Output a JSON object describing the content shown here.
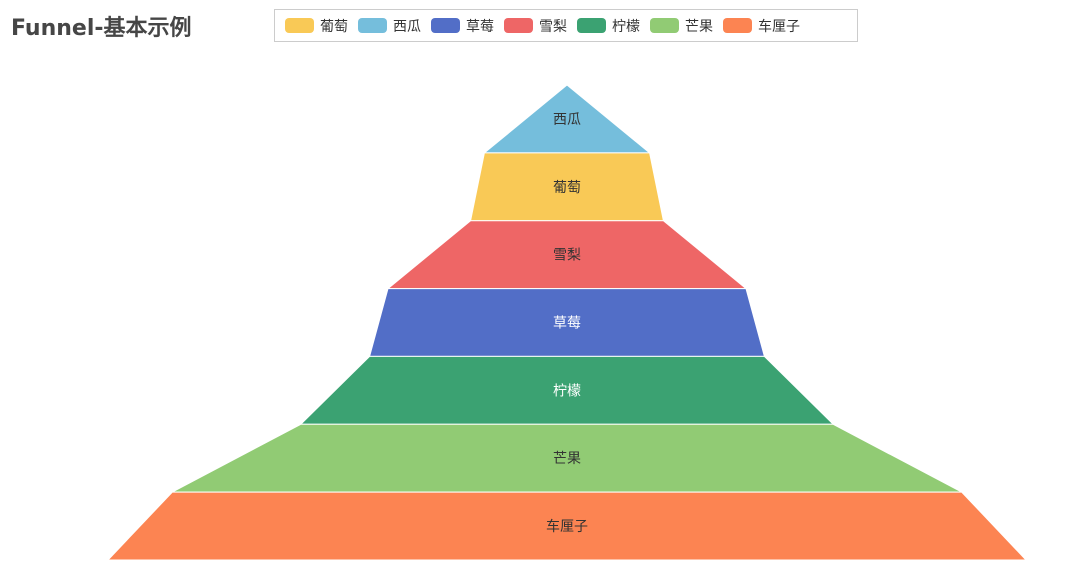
{
  "title": "Funnel-基本示例",
  "chart_data": {
    "type": "funnel",
    "title": "Funnel-基本示例",
    "legend_position": "top",
    "legend": [
      {
        "name": "葡萄",
        "color": "#f9c956"
      },
      {
        "name": "西瓜",
        "color": "#75bedc"
      },
      {
        "name": "草莓",
        "color": "#526ec7"
      },
      {
        "name": "雪梨",
        "color": "#ee6666"
      },
      {
        "name": "柠檬",
        "color": "#3ba272"
      },
      {
        "name": "芒果",
        "color": "#91cb74"
      },
      {
        "name": "车厘子",
        "color": "#fc8452"
      }
    ],
    "segments": [
      {
        "name": "西瓜",
        "relative_width": 0.18,
        "color": "#75bedc",
        "label_color": "#333333"
      },
      {
        "name": "葡萄",
        "relative_width": 0.21,
        "color": "#f9c956",
        "label_color": "#333333"
      },
      {
        "name": "雪梨",
        "relative_width": 0.39,
        "color": "#ee6666",
        "label_color": "#333333"
      },
      {
        "name": "草莓",
        "relative_width": 0.43,
        "color": "#526ec7",
        "label_color": "#ffffff"
      },
      {
        "name": "柠檬",
        "relative_width": 0.58,
        "color": "#3ba272",
        "label_color": "#ffffff"
      },
      {
        "name": "芒果",
        "relative_width": 0.86,
        "color": "#91cb74",
        "label_color": "#333333"
      },
      {
        "name": "车厘子",
        "relative_width": 1.0,
        "color": "#fc8452",
        "label_color": "#333333"
      }
    ]
  }
}
